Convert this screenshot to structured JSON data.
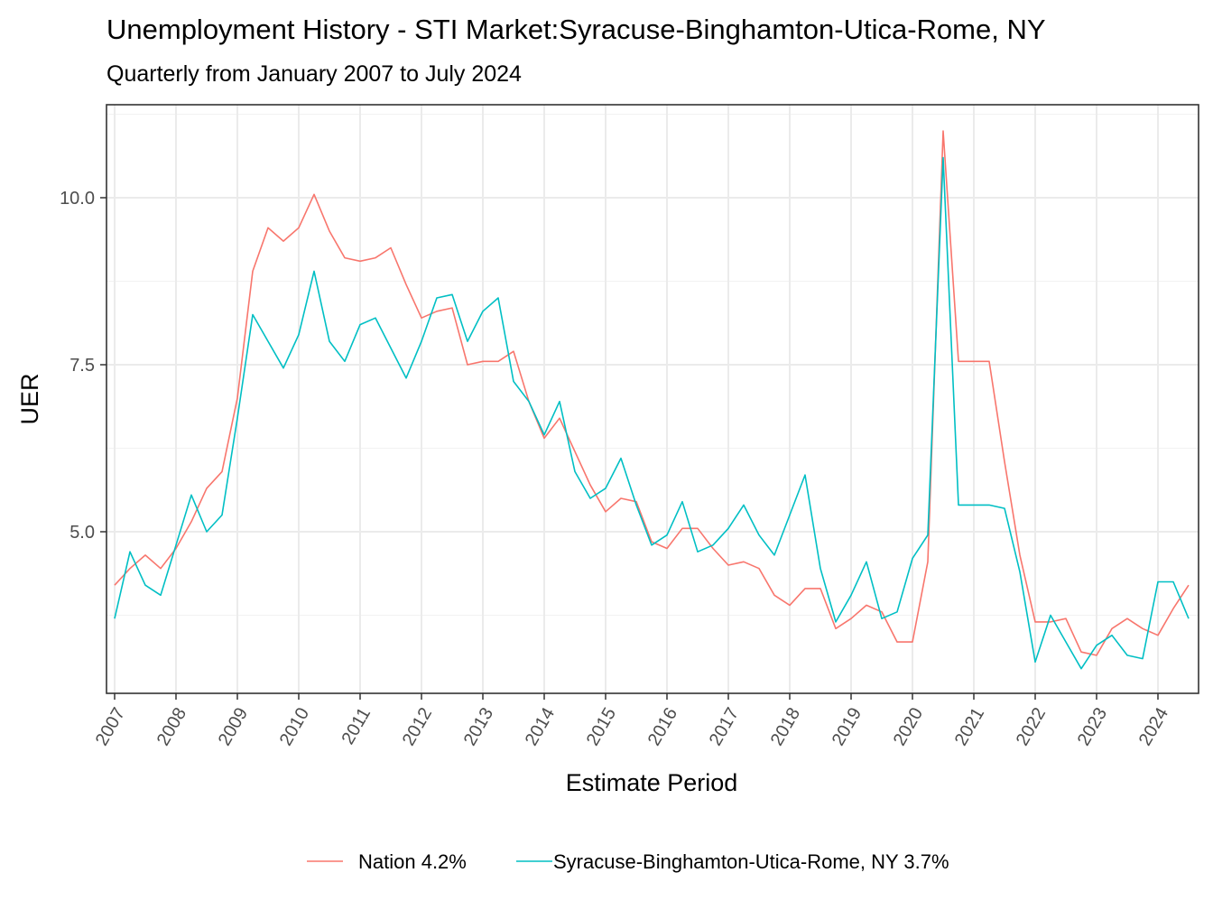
{
  "chart_data": {
    "type": "line",
    "title": "Unemployment History - STI Market:Syracuse-Binghamton-Utica-Rome, NY",
    "subtitle": "Quarterly from January 2007 to July 2024",
    "xlabel": "Estimate Period",
    "ylabel": "UER",
    "x_ticks": [
      "2007",
      "2008",
      "2009",
      "2010",
      "2011",
      "2012",
      "2013",
      "2014",
      "2015",
      "2016",
      "2017",
      "2018",
      "2019",
      "2020",
      "2021",
      "2022",
      "2023",
      "2024"
    ],
    "y_ticks": [
      "5.0",
      "7.5",
      "10.0"
    ],
    "xlim": [
      2007.0,
      2024.6
    ],
    "ylim": [
      2.7,
      11.5
    ],
    "grid": true,
    "legend_position": "bottom",
    "x": [
      2007.0,
      2007.25,
      2007.5,
      2007.75,
      2008.0,
      2008.25,
      2008.5,
      2008.75,
      2009.0,
      2009.25,
      2009.5,
      2009.75,
      2010.0,
      2010.25,
      2010.5,
      2010.75,
      2011.0,
      2011.25,
      2011.5,
      2011.75,
      2012.0,
      2012.25,
      2012.5,
      2012.75,
      2013.0,
      2013.25,
      2013.5,
      2013.75,
      2014.0,
      2014.25,
      2014.5,
      2014.75,
      2015.0,
      2015.25,
      2015.5,
      2015.75,
      2016.0,
      2016.25,
      2016.5,
      2016.75,
      2017.0,
      2017.25,
      2017.5,
      2017.75,
      2018.0,
      2018.25,
      2018.5,
      2018.75,
      2019.0,
      2019.25,
      2019.5,
      2019.75,
      2020.0,
      2020.25,
      2020.5,
      2020.75,
      2021.0,
      2021.25,
      2021.5,
      2021.75,
      2022.0,
      2022.25,
      2022.5,
      2022.75,
      2023.0,
      2023.25,
      2023.5,
      2023.75,
      2024.0,
      2024.25,
      2024.5
    ],
    "series": [
      {
        "name": "Nation 4.2%",
        "color": "#F8766D",
        "values": [
          4.2,
          4.45,
          4.65,
          4.45,
          4.75,
          5.15,
          5.65,
          5.9,
          7.0,
          8.9,
          9.55,
          9.35,
          9.55,
          10.05,
          9.5,
          9.1,
          9.05,
          9.1,
          9.25,
          8.7,
          8.2,
          8.3,
          8.35,
          7.5,
          7.55,
          7.55,
          7.7,
          6.95,
          6.4,
          6.7,
          6.2,
          5.7,
          5.3,
          5.5,
          5.45,
          4.85,
          4.75,
          5.05,
          5.05,
          4.75,
          4.5,
          4.55,
          4.45,
          4.05,
          3.9,
          4.15,
          4.15,
          3.55,
          3.7,
          3.9,
          3.8,
          3.35,
          3.35,
          4.55,
          11.0,
          7.55,
          7.55,
          7.55,
          6.05,
          4.65,
          3.65,
          3.65,
          3.7,
          3.2,
          3.15,
          3.55,
          3.7,
          3.55,
          3.45,
          3.85,
          4.2
        ]
      },
      {
        "name": "Syracuse-Binghamton-Utica-Rome, NY 3.7%",
        "color": "#00BFC4",
        "values": [
          3.7,
          4.7,
          4.2,
          4.05,
          4.8,
          5.55,
          5.0,
          5.25,
          6.7,
          8.25,
          7.85,
          7.45,
          7.95,
          8.9,
          7.85,
          7.55,
          8.1,
          8.2,
          7.75,
          7.3,
          7.85,
          8.5,
          8.55,
          7.85,
          8.3,
          8.5,
          7.25,
          6.95,
          6.45,
          6.95,
          5.9,
          5.5,
          5.65,
          6.1,
          5.4,
          4.8,
          4.95,
          5.45,
          4.7,
          4.8,
          5.05,
          5.4,
          4.95,
          4.65,
          5.25,
          5.85,
          4.45,
          3.65,
          4.05,
          4.55,
          3.7,
          3.8,
          4.6,
          4.95,
          10.6,
          5.4,
          5.4,
          5.4,
          5.35,
          4.4,
          3.05,
          3.75,
          3.35,
          2.95,
          3.3,
          3.45,
          3.15,
          3.1,
          4.25,
          4.25,
          3.7
        ]
      }
    ]
  }
}
